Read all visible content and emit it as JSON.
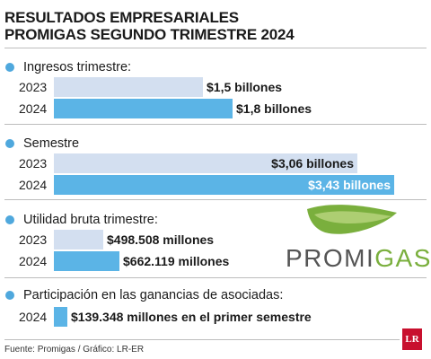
{
  "title_lines": [
    "RESULTADOS EMPRESARIALES",
    "PROMIGAS SEGUNDO TRIMESTRE 2024"
  ],
  "colors": {
    "dot": "#4fa8dd",
    "bar_prev": "#d3dff0",
    "bar_curr": "#5bb4e6",
    "logo_gas": "#7aaf3d"
  },
  "chart_data": {
    "type": "bar",
    "orientation": "horizontal",
    "unit": "billones (COP)",
    "sections": [
      {
        "label": "Ingresos trimestre:",
        "rows": [
          {
            "year": "2023",
            "value": 1.5,
            "label": "$1,5 billones"
          },
          {
            "year": "2024",
            "value": 1.8,
            "label": "$1,8 billones"
          }
        ]
      },
      {
        "label": "Semestre",
        "rows": [
          {
            "year": "2023",
            "value": 3.06,
            "label": "$3,06 billones"
          },
          {
            "year": "2024",
            "value": 3.43,
            "label": "$3,43 billones"
          }
        ]
      },
      {
        "label": "Utilidad bruta trimestre:",
        "rows": [
          {
            "year": "2023",
            "value": 0.498508,
            "label": "$498.508 millones"
          },
          {
            "year": "2024",
            "value": 0.662119,
            "label": "$662.119 millones"
          }
        ]
      },
      {
        "label": "Participación en las ganancias de asociadas:",
        "rows": [
          {
            "year": "2024",
            "value": 0.139348,
            "label": "$139.348 millones en el primer semestre"
          }
        ]
      }
    ]
  },
  "logo": {
    "text_dark": "PROMI",
    "text_green": "GAS"
  },
  "footer": "Fuente: Promigas / Gráfico: LR-ER",
  "badge": "LR"
}
